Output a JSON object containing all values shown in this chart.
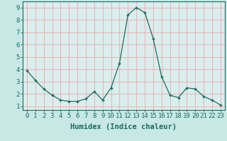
{
  "x": [
    0,
    1,
    2,
    3,
    4,
    5,
    6,
    7,
    8,
    9,
    10,
    11,
    12,
    13,
    14,
    15,
    16,
    17,
    18,
    19,
    20,
    21,
    22,
    23
  ],
  "y": [
    3.9,
    3.1,
    2.4,
    1.9,
    1.5,
    1.4,
    1.4,
    1.6,
    2.2,
    1.5,
    2.5,
    4.5,
    8.4,
    9.0,
    8.6,
    6.5,
    3.4,
    1.9,
    1.7,
    2.5,
    2.4,
    1.8,
    1.5,
    1.1
  ],
  "line_color": "#1a6b5e",
  "marker": "+",
  "bg_color": "#c8e8e5",
  "plot_bg_color": "#d9eeed",
  "grid_color": "#e8b8b8",
  "xlabel": "Humidex (Indice chaleur)",
  "ylabel_ticks": [
    1,
    2,
    3,
    4,
    5,
    6,
    7,
    8,
    9
  ],
  "xlim": [
    -0.5,
    23.5
  ],
  "ylim": [
    0.7,
    9.5
  ],
  "tick_color": "#1a6b5e",
  "axis_color": "#1a6b5e",
  "label_fontsize": 7.5,
  "tick_fontsize": 6.5
}
